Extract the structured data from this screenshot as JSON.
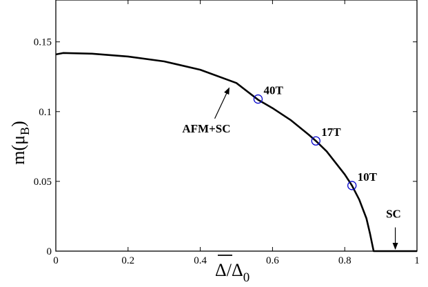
{
  "chart_data": {
    "type": "line",
    "xlabel_main": "Δ",
    "xlabel_sep": "/Δ",
    "xlabel_sub": "0",
    "ylabel_main": "m(μ",
    "ylabel_sub": "B",
    "ylabel_close": ")",
    "xlim": [
      0,
      1
    ],
    "ylim": [
      0,
      0.18
    ],
    "xticks": [
      0,
      0.2,
      0.4,
      0.6,
      0.8,
      1
    ],
    "xtick_labels": [
      "0",
      "0.2",
      "0.4",
      "0.6",
      "0.8",
      "1"
    ],
    "yticks": [
      0,
      0.05,
      0.1,
      0.15
    ],
    "ytick_labels": [
      "0",
      "0.05",
      "0.1",
      "0.15"
    ],
    "grid": false,
    "curve": {
      "x": [
        0,
        0.02,
        0.1,
        0.2,
        0.3,
        0.4,
        0.5,
        0.56,
        0.6,
        0.65,
        0.7,
        0.72,
        0.75,
        0.8,
        0.82,
        0.84,
        0.86,
        0.87,
        0.88,
        0.9,
        0.95,
        1.0
      ],
      "y": [
        0.141,
        0.142,
        0.1415,
        0.1395,
        0.136,
        0.13,
        0.1205,
        0.1085,
        0.1025,
        0.094,
        0.0835,
        0.079,
        0.0715,
        0.055,
        0.047,
        0.037,
        0.0235,
        0.0125,
        0.0,
        0.0,
        0.0,
        0.0
      ]
    },
    "markers": [
      {
        "label": "40T",
        "x": 0.56,
        "y": 0.109
      },
      {
        "label": "17T",
        "x": 0.72,
        "y": 0.079
      },
      {
        "label": "10T",
        "x": 0.82,
        "y": 0.047
      }
    ],
    "annotations": [
      {
        "text": "AFM+SC",
        "arrow_to": [
          0.48,
          0.117
        ],
        "text_at": [
          0.35,
          0.085
        ]
      },
      {
        "text": "SC",
        "arrow_to": [
          0.94,
          0.0
        ],
        "text_at": [
          0.935,
          0.024
        ]
      }
    ],
    "line_color": "#000000",
    "marker_color": "#0000cc"
  }
}
